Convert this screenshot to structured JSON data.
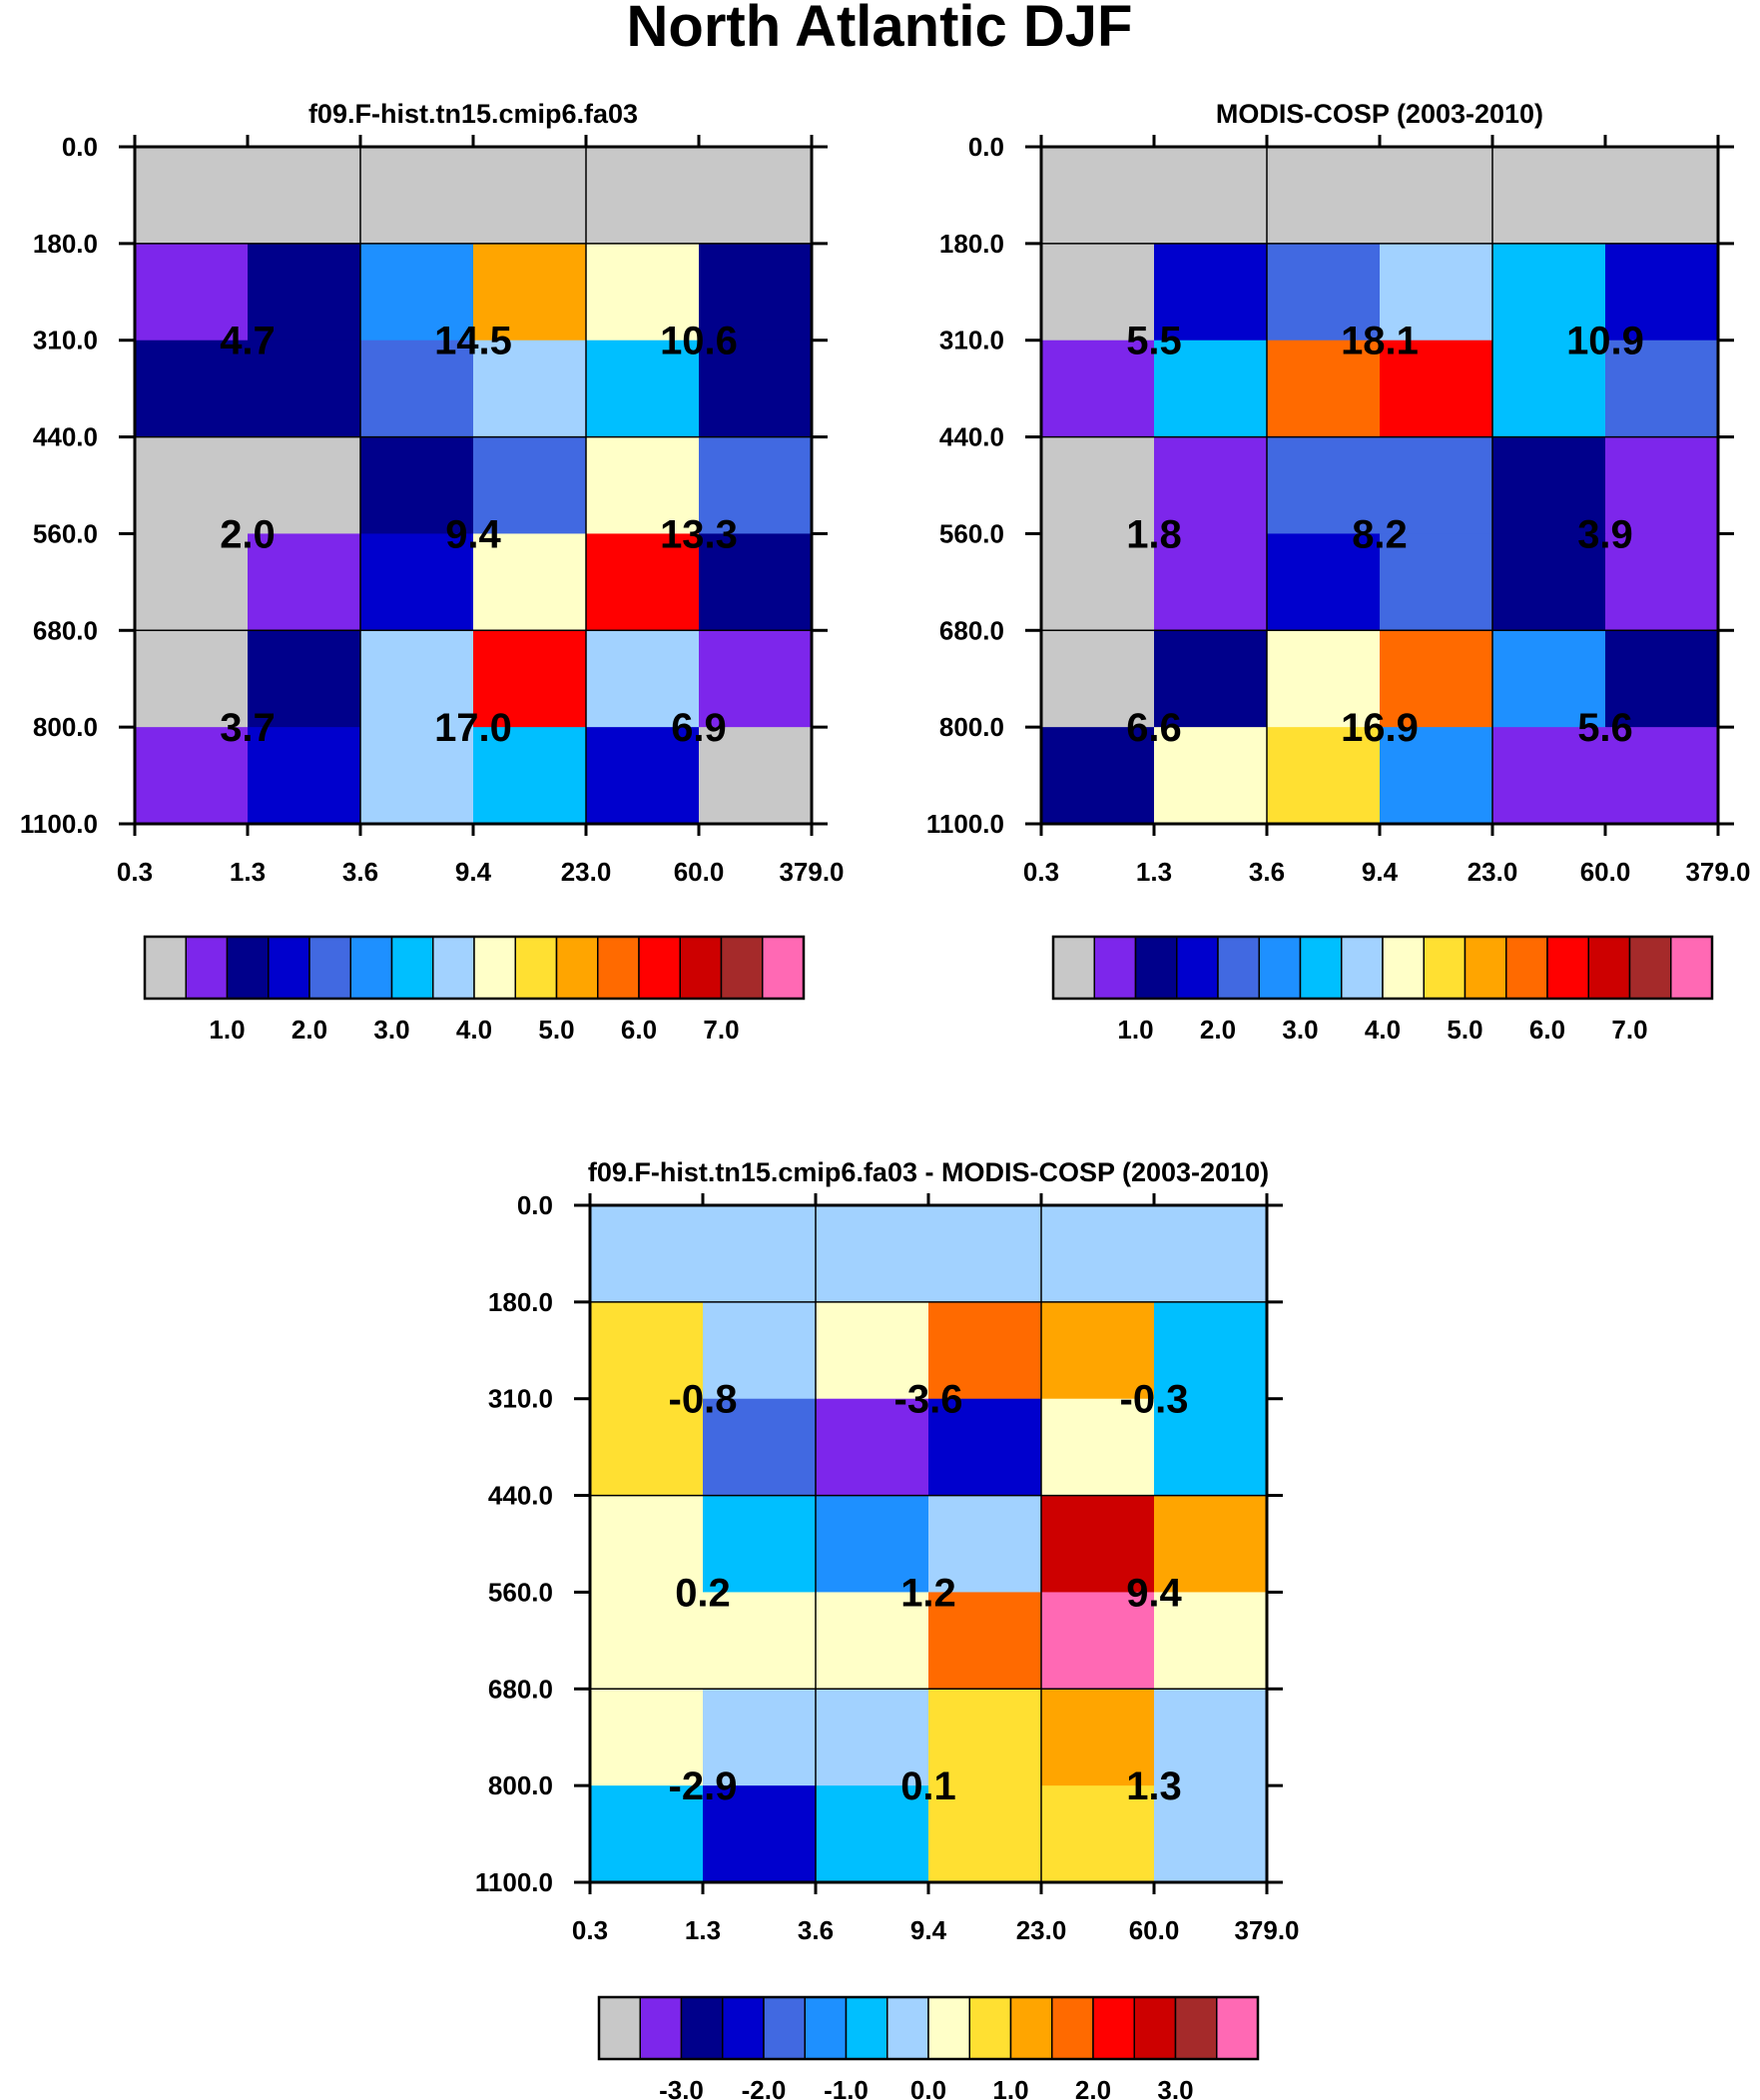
{
  "figure": {
    "title": "North Atlantic DJF"
  },
  "palettes": {
    "abs": [
      "#c8c8c8",
      "#7d26eb",
      "#00008b",
      "#0000cd",
      "#4169e1",
      "#1e90ff",
      "#00bfff",
      "#a2d2ff",
      "#ffffc8",
      "#ffe032",
      "#ffa500",
      "#ff6a00",
      "#ff0000",
      "#cd0000",
      "#a52a2a",
      "#ff69b4"
    ],
    "diff": [
      "#c8c8c8",
      "#7d26eb",
      "#00008b",
      "#0000cd",
      "#4169e1",
      "#1e90ff",
      "#00bfff",
      "#a2d2ff",
      "#ffffc8",
      "#ffe032",
      "#ffa500",
      "#ff6a00",
      "#ff0000",
      "#cd0000",
      "#a52a2a",
      "#ff69b4"
    ]
  },
  "chart_data": [
    {
      "id": "model",
      "type": "heatmap",
      "title": "f09.F-hist.tn15.cmip6.fa03",
      "x_tick_labels": [
        "0.3",
        "1.3",
        "3.6",
        "9.4",
        "23.0",
        "60.0",
        "379.0"
      ],
      "y_tick_labels": [
        "0.0",
        "180.0",
        "310.0",
        "440.0",
        "560.0",
        "680.0",
        "800.0",
        "1100.0"
      ],
      "cell_color_index": [
        [
          0,
          0,
          0,
          0,
          0,
          0
        ],
        [
          1,
          2,
          5,
          10,
          8,
          2
        ],
        [
          2,
          2,
          4,
          7,
          6,
          2
        ],
        [
          0,
          0,
          2,
          4,
          8,
          4
        ],
        [
          0,
          1,
          3,
          8,
          12,
          2
        ],
        [
          0,
          2,
          7,
          12,
          7,
          1
        ],
        [
          1,
          3,
          7,
          6,
          3,
          0
        ]
      ],
      "group_labels": [
        [
          "4.7",
          "14.5",
          "10.6"
        ],
        [
          "2.0",
          "9.4",
          "13.3"
        ],
        [
          "3.7",
          "17.0",
          "6.9"
        ]
      ],
      "colorbar": {
        "palette": "abs",
        "labels": [
          "1.0",
          "2.0",
          "3.0",
          "4.0",
          "5.0",
          "6.0",
          "7.0"
        ]
      }
    },
    {
      "id": "obs",
      "type": "heatmap",
      "title": "MODIS-COSP (2003-2010)",
      "x_tick_labels": [
        "0.3",
        "1.3",
        "3.6",
        "9.4",
        "23.0",
        "60.0",
        "379.0"
      ],
      "y_tick_labels": [
        "0.0",
        "180.0",
        "310.0",
        "440.0",
        "560.0",
        "680.0",
        "800.0",
        "1100.0"
      ],
      "cell_color_index": [
        [
          0,
          0,
          0,
          0,
          0,
          0
        ],
        [
          0,
          3,
          4,
          7,
          6,
          3
        ],
        [
          1,
          6,
          11,
          12,
          6,
          4
        ],
        [
          0,
          1,
          4,
          4,
          2,
          1
        ],
        [
          0,
          1,
          3,
          4,
          2,
          1
        ],
        [
          0,
          2,
          8,
          11,
          5,
          2
        ],
        [
          2,
          8,
          9,
          5,
          1,
          1
        ]
      ],
      "group_labels": [
        [
          "5.5",
          "18.1",
          "10.9"
        ],
        [
          "1.8",
          "8.2",
          "3.9"
        ],
        [
          "6.6",
          "16.9",
          "5.6"
        ]
      ],
      "colorbar": {
        "palette": "abs",
        "labels": [
          "1.0",
          "2.0",
          "3.0",
          "4.0",
          "5.0",
          "6.0",
          "7.0"
        ]
      }
    },
    {
      "id": "diff",
      "type": "heatmap",
      "title": "f09.F-hist.tn15.cmip6.fa03 - MODIS-COSP (2003-2010)",
      "x_tick_labels": [
        "0.3",
        "1.3",
        "3.6",
        "9.4",
        "23.0",
        "60.0",
        "379.0"
      ],
      "y_tick_labels": [
        "0.0",
        "180.0",
        "310.0",
        "440.0",
        "560.0",
        "680.0",
        "800.0",
        "1100.0"
      ],
      "cell_color_index": [
        [
          7,
          7,
          7,
          7,
          7,
          7
        ],
        [
          9,
          7,
          8,
          11,
          10,
          6
        ],
        [
          9,
          4,
          1,
          3,
          8,
          6
        ],
        [
          8,
          6,
          5,
          7,
          13,
          10
        ],
        [
          8,
          8,
          8,
          11,
          15,
          8
        ],
        [
          8,
          7,
          7,
          9,
          10,
          7
        ],
        [
          6,
          3,
          6,
          9,
          9,
          7
        ]
      ],
      "group_labels": [
        [
          "-0.8",
          "-3.6",
          "-0.3"
        ],
        [
          "0.2",
          "1.2",
          "9.4"
        ],
        [
          "-2.9",
          "0.1",
          "1.3"
        ]
      ],
      "colorbar": {
        "palette": "diff",
        "labels": [
          "-3.0",
          "-2.0",
          "-1.0",
          "0.0",
          "1.0",
          "2.0",
          "3.0"
        ]
      }
    }
  ]
}
